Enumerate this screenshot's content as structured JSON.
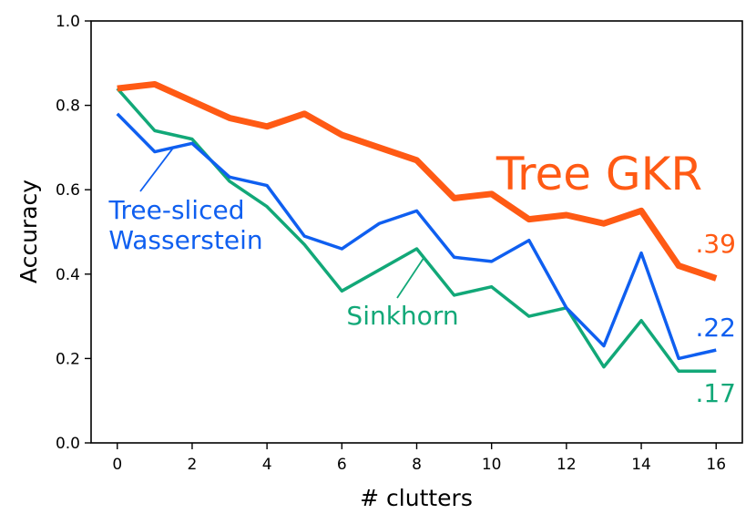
{
  "chart_data": {
    "type": "line",
    "xlabel": "# clutters",
    "ylabel": "Accuracy",
    "xlim": [
      -0.7,
      16.7
    ],
    "ylim": [
      0.0,
      1.0
    ],
    "x_ticks": [
      "0",
      "2",
      "4",
      "6",
      "8",
      "10",
      "12",
      "14",
      "16"
    ],
    "y_ticks": [
      "0.0",
      "0.2",
      "0.4",
      "0.6",
      "0.8",
      "1.0"
    ],
    "grid": false,
    "x": [
      0,
      1,
      2,
      3,
      4,
      5,
      6,
      7,
      8,
      9,
      10,
      11,
      12,
      13,
      14,
      15,
      16
    ],
    "series": [
      {
        "name": "Tree GKR",
        "color": "#ff5a14",
        "values": [
          0.84,
          0.85,
          0.81,
          0.77,
          0.75,
          0.78,
          0.73,
          0.7,
          0.67,
          0.58,
          0.59,
          0.53,
          0.54,
          0.52,
          0.55,
          0.42,
          0.39
        ],
        "end_label": ".39"
      },
      {
        "name": "Tree-sliced Wasserstein",
        "name_lines": [
          "Tree-sliced",
          "Wasserstein"
        ],
        "color": "#0f5ff0",
        "values": [
          0.78,
          0.69,
          0.71,
          0.63,
          0.61,
          0.49,
          0.46,
          0.52,
          0.55,
          0.44,
          0.43,
          0.48,
          0.32,
          0.23,
          0.45,
          0.2,
          0.22
        ],
        "end_label": ".22"
      },
      {
        "name": "Sinkhorn",
        "color": "#12a878",
        "values": [
          0.84,
          0.74,
          0.72,
          0.62,
          0.56,
          0.47,
          0.36,
          0.41,
          0.46,
          0.35,
          0.37,
          0.3,
          0.32,
          0.18,
          0.29,
          0.17,
          0.17
        ],
        "end_label": ".17"
      }
    ]
  }
}
